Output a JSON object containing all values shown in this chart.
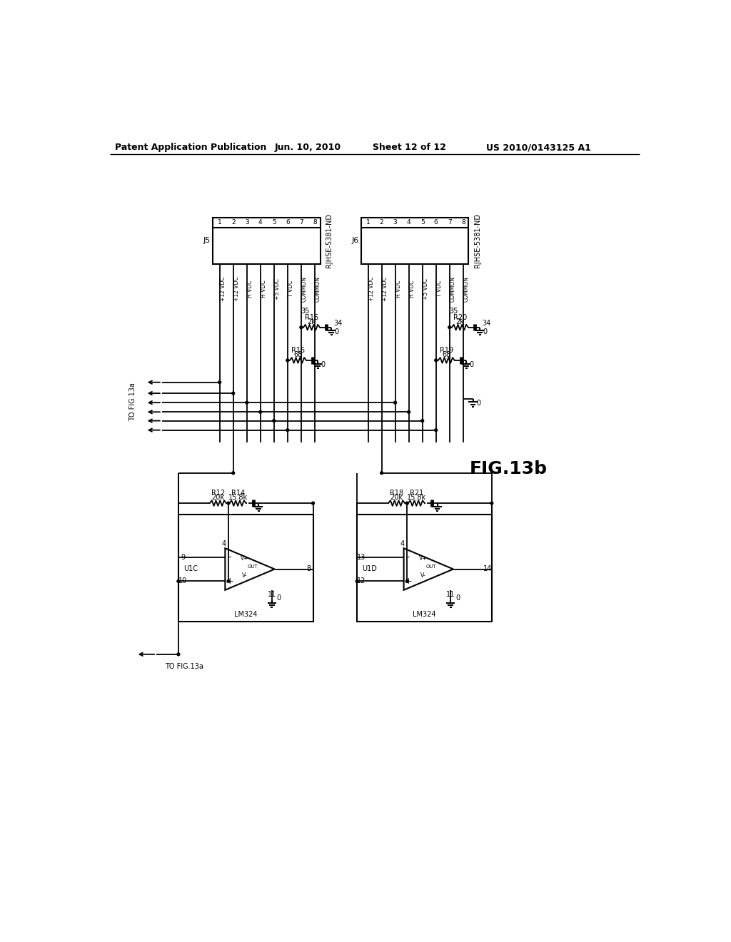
{
  "bg_color": "#ffffff",
  "header_text": "Patent Application Publication",
  "header_date": "Jun. 10, 2010",
  "header_sheet": "Sheet 12 of 12",
  "header_patent": "US 2010/0143125 A1",
  "fig_label": "FIG.13b",
  "j5_label": "J5",
  "j6_label": "J6",
  "part_label": "RJHSE-5381-ND",
  "pin_names": [
    "+12 VDC",
    "+12 VDC",
    "H VDC",
    "H VDC",
    "+5 VDC",
    "T VDC",
    "COMMON",
    "COMMON"
  ],
  "u1c_label": "U1C",
  "u1d_label": "U1D",
  "ic_label": "LM324",
  "to_fig_label": "TO FIG.13a"
}
